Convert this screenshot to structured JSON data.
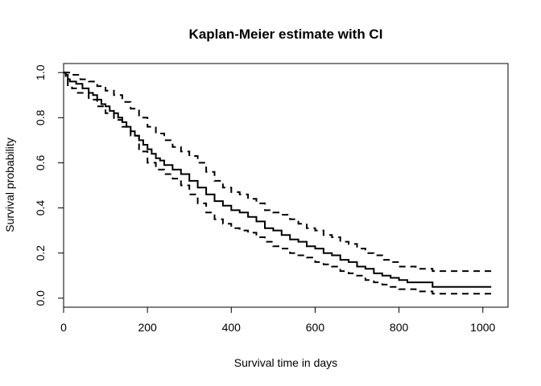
{
  "chart_data": {
    "type": "line",
    "title": "Kaplan-Meier estimate with CI",
    "xlabel": "Survival time in days",
    "ylabel": "Survival probability",
    "xlim": [
      0,
      1060
    ],
    "ylim": [
      -0.04,
      1.04
    ],
    "x_ticks": [
      0,
      200,
      400,
      600,
      800,
      1000
    ],
    "y_ticks": [
      0.0,
      0.2,
      0.4,
      0.6,
      0.8,
      1.0
    ],
    "x_tick_labels": [
      "0",
      "200",
      "400",
      "600",
      "800",
      "1000"
    ],
    "y_tick_labels": [
      "0.0",
      "0.2",
      "0.4",
      "0.6",
      "0.8",
      "1.0"
    ],
    "grid": false,
    "legend": "none",
    "series": [
      {
        "style": "solid",
        "color": "#000000",
        "x": [
          0,
          5,
          10,
          15,
          30,
          45,
          60,
          70,
          80,
          90,
          100,
          110,
          120,
          130,
          140,
          150,
          160,
          170,
          180,
          190,
          200,
          210,
          220,
          230,
          240,
          260,
          280,
          300,
          320,
          340,
          360,
          380,
          400,
          420,
          440,
          460,
          480,
          500,
          520,
          540,
          560,
          580,
          600,
          620,
          640,
          660,
          680,
          700,
          720,
          740,
          760,
          780,
          800,
          820,
          840,
          860,
          880,
          1020
        ],
        "y": [
          1.0,
          0.99,
          0.97,
          0.96,
          0.95,
          0.93,
          0.91,
          0.9,
          0.88,
          0.86,
          0.85,
          0.83,
          0.82,
          0.8,
          0.78,
          0.76,
          0.74,
          0.72,
          0.7,
          0.68,
          0.66,
          0.64,
          0.62,
          0.61,
          0.59,
          0.57,
          0.55,
          0.52,
          0.49,
          0.46,
          0.43,
          0.41,
          0.39,
          0.38,
          0.36,
          0.34,
          0.31,
          0.3,
          0.28,
          0.26,
          0.25,
          0.23,
          0.22,
          0.2,
          0.19,
          0.17,
          0.16,
          0.14,
          0.13,
          0.11,
          0.1,
          0.09,
          0.08,
          0.07,
          0.07,
          0.07,
          0.05,
          0.05
        ]
      },
      {
        "style": "dashed",
        "color": "#000000",
        "x": [
          0,
          20,
          40,
          60,
          80,
          100,
          120,
          140,
          160,
          180,
          200,
          220,
          240,
          260,
          280,
          300,
          320,
          340,
          360,
          380,
          400,
          420,
          440,
          460,
          480,
          500,
          520,
          540,
          560,
          580,
          600,
          620,
          640,
          660,
          680,
          700,
          720,
          740,
          760,
          780,
          800,
          820,
          840,
          860,
          880,
          1020
        ],
        "y": [
          1.0,
          0.99,
          0.97,
          0.96,
          0.94,
          0.92,
          0.9,
          0.87,
          0.84,
          0.8,
          0.76,
          0.73,
          0.7,
          0.67,
          0.65,
          0.63,
          0.6,
          0.56,
          0.52,
          0.49,
          0.47,
          0.46,
          0.44,
          0.42,
          0.39,
          0.38,
          0.37,
          0.35,
          0.33,
          0.31,
          0.3,
          0.28,
          0.27,
          0.25,
          0.24,
          0.22,
          0.2,
          0.19,
          0.17,
          0.16,
          0.14,
          0.14,
          0.13,
          0.13,
          0.12,
          0.12
        ]
      },
      {
        "style": "dashed",
        "color": "#000000",
        "x": [
          0,
          5,
          10,
          20,
          30,
          60,
          80,
          100,
          120,
          140,
          160,
          180,
          200,
          220,
          240,
          260,
          280,
          300,
          320,
          340,
          360,
          380,
          400,
          420,
          440,
          460,
          480,
          500,
          520,
          540,
          560,
          580,
          600,
          620,
          640,
          660,
          680,
          700,
          720,
          740,
          760,
          780,
          800,
          820,
          840,
          860,
          880,
          1020
        ],
        "y": [
          1.0,
          0.97,
          0.94,
          0.93,
          0.91,
          0.88,
          0.85,
          0.82,
          0.79,
          0.76,
          0.72,
          0.65,
          0.6,
          0.57,
          0.55,
          0.53,
          0.5,
          0.46,
          0.42,
          0.38,
          0.35,
          0.33,
          0.31,
          0.3,
          0.29,
          0.27,
          0.25,
          0.23,
          0.22,
          0.2,
          0.19,
          0.18,
          0.16,
          0.15,
          0.14,
          0.12,
          0.11,
          0.1,
          0.08,
          0.07,
          0.06,
          0.05,
          0.04,
          0.04,
          0.03,
          0.03,
          0.02,
          0.02
        ]
      }
    ]
  }
}
